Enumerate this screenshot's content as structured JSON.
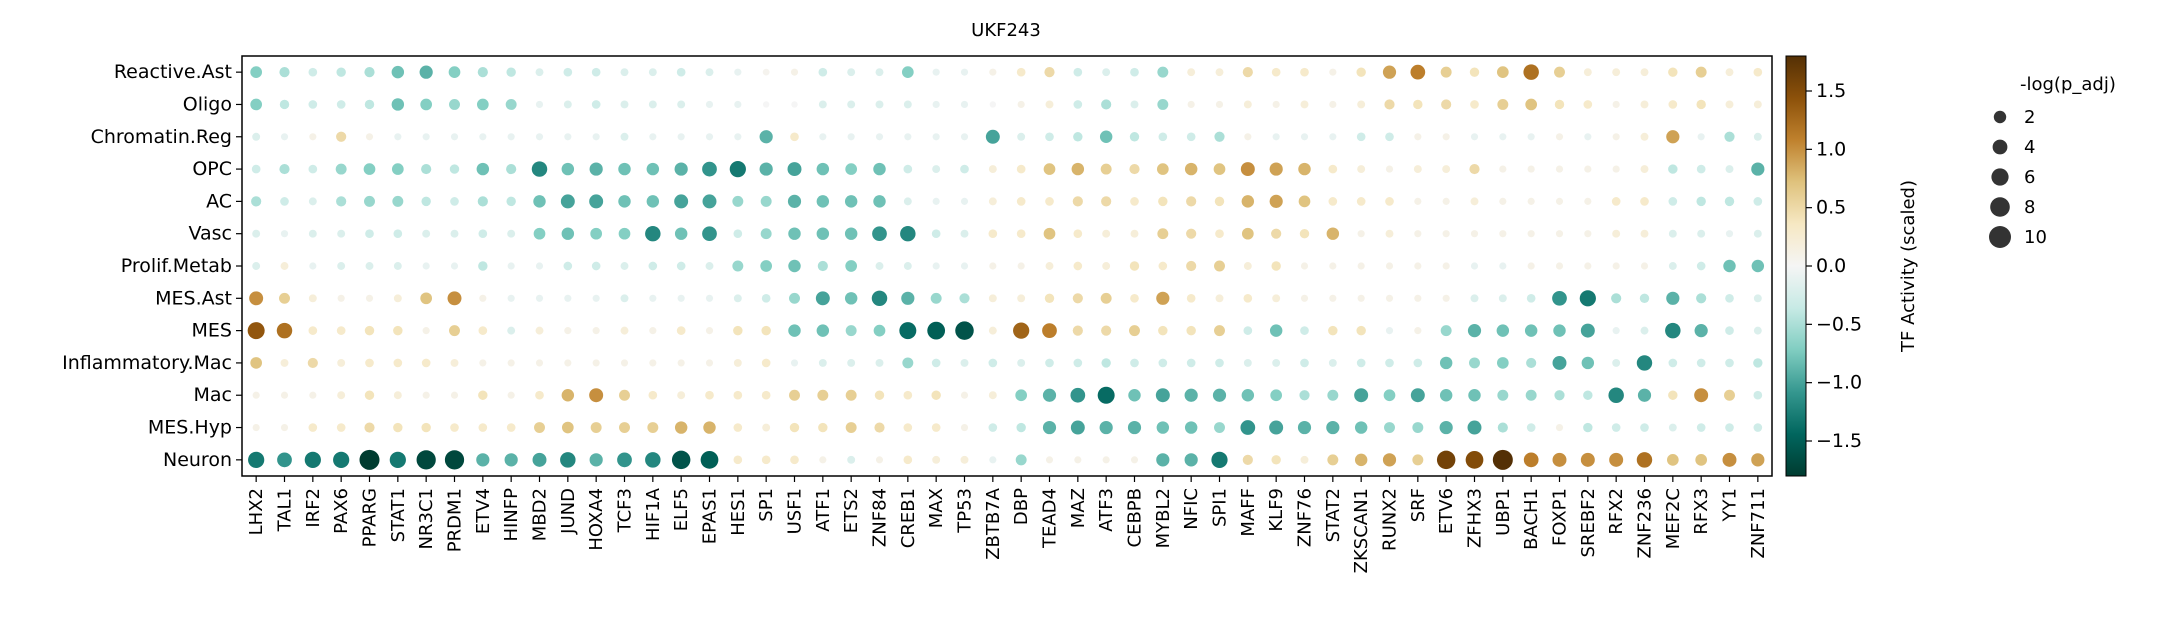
{
  "chart_data": {
    "type": "dotplot",
    "title": "UKF243",
    "rows": [
      "Reactive.Ast",
      "Oligo",
      "Chromatin.Reg",
      "OPC",
      "AC",
      "Vasc",
      "Prolif.Metab",
      "MES.Ast",
      "MES",
      "Inflammatory.Mac",
      "Mac",
      "MES.Hyp",
      "Neuron"
    ],
    "columns": [
      "LHX2",
      "TAL1",
      "IRF2",
      "PAX6",
      "PPARG",
      "STAT1",
      "NR3C1",
      "PRDM1",
      "ETV4",
      "HINFP",
      "MBD2",
      "JUND",
      "HOXA4",
      "TCF3",
      "HIF1A",
      "ELF5",
      "EPAS1",
      "HES1",
      "SP1",
      "USF1",
      "ATF1",
      "ETS2",
      "ZNF84",
      "CREB1",
      "MAX",
      "TP53",
      "ZBTB7A",
      "DBP",
      "TEAD4",
      "MAZ",
      "ATF3",
      "CEBPB",
      "MYBL2",
      "NFIC",
      "SPI1",
      "MAFF",
      "KLF9",
      "ZNF76",
      "STAT2",
      "ZKSCAN1",
      "RUNX2",
      "SRF",
      "ETV6",
      "ZFHX3",
      "UBP1",
      "BACH1",
      "FOXP1",
      "SREBF2",
      "RFX2",
      "ZNF236",
      "MEF2C",
      "RFX3",
      "YY1",
      "ZNF711"
    ],
    "activity": [
      [
        -0.7,
        -0.5,
        -0.3,
        -0.4,
        -0.5,
        -0.8,
        -0.9,
        -0.7,
        -0.5,
        -0.4,
        -0.2,
        -0.3,
        -0.3,
        -0.2,
        -0.2,
        -0.3,
        -0.2,
        -0.1,
        0.05,
        0.1,
        -0.3,
        -0.2,
        -0.2,
        -0.7,
        -0.1,
        -0.1,
        0.1,
        0.3,
        0.5,
        -0.3,
        -0.2,
        -0.3,
        -0.6,
        0.2,
        0.2,
        0.5,
        0.3,
        0.3,
        0.1,
        0.4,
        0.9,
        1.1,
        0.6,
        0.4,
        0.7,
        1.2,
        0.6,
        0.2,
        0.2,
        0.2,
        0.4,
        0.6,
        0.2,
        0.3
      ],
      [
        -0.7,
        -0.4,
        -0.3,
        -0.3,
        -0.4,
        -0.8,
        -0.7,
        -0.6,
        -0.7,
        -0.6,
        -0.1,
        -0.2,
        -0.3,
        -0.2,
        -0.2,
        -0.2,
        -0.1,
        -0.1,
        0.0,
        0.0,
        -0.2,
        -0.2,
        -0.2,
        -0.2,
        -0.1,
        -0.1,
        0.0,
        0.1,
        0.2,
        -0.3,
        -0.5,
        -0.2,
        -0.6,
        0.1,
        0.1,
        0.2,
        0.1,
        0.2,
        0.1,
        0.2,
        0.5,
        0.4,
        0.5,
        0.3,
        0.6,
        0.7,
        0.4,
        0.3,
        0.1,
        0.2,
        0.3,
        0.4,
        0.2,
        0.2
      ],
      [
        -0.2,
        -0.1,
        0.1,
        0.5,
        0.1,
        -0.1,
        -0.1,
        -0.1,
        -0.1,
        -0.1,
        -0.1,
        -0.1,
        -0.1,
        -0.2,
        -0.1,
        -0.1,
        -0.1,
        -0.1,
        -0.9,
        0.3,
        -0.1,
        -0.1,
        -0.1,
        -0.1,
        -0.1,
        -0.1,
        -1.0,
        -0.2,
        -0.3,
        -0.4,
        -0.8,
        -0.4,
        -0.3,
        -0.3,
        -0.5,
        0.1,
        -0.1,
        -0.1,
        -0.1,
        -0.3,
        -0.3,
        0.1,
        0.1,
        -0.1,
        -0.1,
        -0.1,
        0.1,
        -0.1,
        0.1,
        0.2,
        0.9,
        -0.1,
        -0.5,
        -0.2
      ],
      [
        -0.3,
        -0.5,
        -0.3,
        -0.6,
        -0.7,
        -0.7,
        -0.5,
        -0.4,
        -0.8,
        -0.5,
        -1.2,
        -0.8,
        -0.9,
        -0.8,
        -0.8,
        -0.9,
        -1.1,
        -1.3,
        -0.9,
        -1.0,
        -0.8,
        -0.7,
        -0.8,
        -0.3,
        -0.2,
        -0.3,
        0.2,
        0.3,
        0.7,
        0.8,
        0.6,
        0.5,
        0.7,
        0.8,
        0.7,
        1.0,
        0.9,
        0.8,
        0.3,
        0.2,
        0.1,
        0.2,
        0.2,
        0.5,
        0.1,
        0.1,
        0.1,
        0.1,
        0.1,
        0.2,
        -0.4,
        -0.3,
        -0.2,
        -0.9
      ],
      [
        -0.5,
        -0.3,
        -0.2,
        -0.5,
        -0.6,
        -0.6,
        -0.4,
        -0.3,
        -0.5,
        -0.4,
        -0.8,
        -1.0,
        -1.0,
        -0.8,
        -0.8,
        -1.0,
        -1.0,
        -0.6,
        -0.6,
        -0.9,
        -0.8,
        -0.8,
        -0.8,
        -0.2,
        -0.1,
        -0.1,
        0.2,
        0.3,
        0.3,
        0.5,
        0.5,
        0.3,
        0.4,
        0.5,
        0.4,
        0.8,
        0.9,
        0.7,
        0.3,
        0.3,
        0.3,
        0.1,
        0.1,
        0.2,
        0.1,
        0.1,
        0.1,
        0.1,
        0.3,
        0.3,
        -0.3,
        -0.4,
        -0.4,
        -0.3
      ],
      [
        -0.2,
        -0.1,
        -0.2,
        -0.2,
        -0.3,
        -0.3,
        -0.2,
        -0.2,
        -0.3,
        -0.2,
        -0.7,
        -0.8,
        -0.7,
        -0.7,
        -1.2,
        -0.8,
        -1.1,
        -0.3,
        -0.6,
        -0.8,
        -0.8,
        -0.8,
        -1.1,
        -1.2,
        -0.3,
        -0.2,
        0.3,
        0.3,
        0.7,
        0.3,
        0.2,
        0.2,
        0.6,
        0.5,
        0.3,
        0.7,
        0.5,
        0.4,
        0.8,
        0.1,
        0.2,
        0.1,
        0.1,
        0.1,
        0.1,
        0.1,
        0.1,
        0.1,
        0.2,
        0.2,
        -0.2,
        -0.2,
        -0.1,
        -0.2
      ],
      [
        -0.2,
        0.2,
        -0.1,
        -0.2,
        -0.2,
        -0.2,
        -0.1,
        -0.1,
        -0.4,
        -0.1,
        -0.1,
        -0.3,
        -0.3,
        -0.2,
        -0.3,
        -0.3,
        -0.2,
        -0.6,
        -0.7,
        -0.8,
        -0.5,
        -0.7,
        -0.2,
        -0.2,
        -0.1,
        -0.1,
        0.1,
        0.1,
        0.2,
        0.3,
        0.2,
        0.4,
        0.3,
        0.5,
        0.6,
        0.2,
        0.4,
        0.1,
        0.1,
        0.1,
        0.1,
        0.1,
        0.1,
        -0.1,
        -0.1,
        0.1,
        0.1,
        0.1,
        0.1,
        0.1,
        -0.2,
        -0.3,
        -0.8,
        -0.8
      ],
      [
        1.0,
        0.6,
        0.2,
        0.1,
        0.1,
        0.2,
        0.7,
        1.0,
        0.1,
        -0.1,
        -0.1,
        -0.1,
        -0.1,
        -0.2,
        -0.1,
        -0.1,
        -0.1,
        -0.2,
        -0.3,
        -0.6,
        -1.0,
        -0.8,
        -1.2,
        -0.9,
        -0.6,
        -0.5,
        0.2,
        0.2,
        0.4,
        0.5,
        0.6,
        0.3,
        0.9,
        0.3,
        0.2,
        0.3,
        0.2,
        0.1,
        0.1,
        0.1,
        0.1,
        0.1,
        0.1,
        -0.2,
        -0.2,
        -0.3,
        -1.1,
        -1.3,
        -0.5,
        -0.4,
        -0.9,
        -0.5,
        -0.3,
        -0.2
      ],
      [
        1.4,
        1.2,
        0.3,
        0.3,
        0.4,
        0.4,
        0.1,
        0.6,
        0.3,
        -0.2,
        0.2,
        0.1,
        0.1,
        0.2,
        0.1,
        0.3,
        0.1,
        0.4,
        0.4,
        -0.8,
        -0.8,
        -0.6,
        -0.7,
        -1.4,
        -1.5,
        -1.6,
        0.2,
        1.3,
        1.1,
        0.5,
        0.5,
        0.6,
        0.4,
        0.4,
        0.6,
        -0.3,
        -0.8,
        -0.3,
        0.4,
        0.4,
        -0.1,
        0.1,
        -0.6,
        -0.9,
        -0.8,
        -0.8,
        -0.8,
        -1.0,
        -0.1,
        -0.2,
        -1.2,
        -0.9,
        -0.3,
        -0.2
      ],
      [
        0.7,
        0.2,
        0.5,
        0.2,
        0.3,
        0.3,
        0.3,
        0.2,
        0.1,
        0.1,
        0.1,
        0.1,
        0.1,
        0.1,
        0.1,
        0.1,
        0.1,
        0.2,
        0.3,
        -0.1,
        -0.2,
        -0.2,
        -0.2,
        -0.6,
        -0.3,
        -0.2,
        -0.3,
        -0.2,
        -0.3,
        -0.3,
        -0.4,
        -0.3,
        -0.3,
        -0.3,
        -0.3,
        -0.2,
        -0.2,
        -0.3,
        -0.2,
        -0.3,
        -0.3,
        -0.3,
        -0.8,
        -0.6,
        -0.7,
        -0.5,
        -1.0,
        -0.8,
        -0.2,
        -1.2,
        -0.3,
        -0.3,
        -0.3,
        -0.4
      ],
      [
        0.1,
        0.1,
        0.1,
        0.2,
        0.4,
        0.2,
        0.1,
        0.1,
        0.4,
        0.1,
        0.3,
        0.8,
        1.0,
        0.6,
        0.3,
        0.2,
        0.3,
        0.3,
        0.3,
        0.6,
        0.6,
        0.6,
        0.4,
        0.3,
        0.4,
        0.1,
        0.2,
        -0.7,
        -0.9,
        -1.1,
        -1.4,
        -0.8,
        -1.0,
        -0.9,
        -0.9,
        -0.8,
        -0.7,
        -0.5,
        -0.6,
        -1.0,
        -0.7,
        -1.0,
        -0.8,
        -0.8,
        -0.6,
        -0.6,
        -0.5,
        -0.4,
        -1.2,
        -0.9,
        0.4,
        1.0,
        0.6,
        -0.3
      ],
      [
        0.1,
        0.1,
        0.3,
        0.3,
        0.5,
        0.4,
        0.4,
        0.3,
        0.3,
        0.3,
        0.6,
        0.7,
        0.6,
        0.6,
        0.6,
        0.8,
        0.8,
        0.3,
        0.2,
        0.4,
        0.4,
        0.6,
        0.5,
        0.3,
        0.3,
        0.1,
        -0.3,
        -0.4,
        -0.9,
        -1.0,
        -0.9,
        -0.9,
        -0.8,
        -0.8,
        -0.6,
        -1.1,
        -1.0,
        -0.9,
        -0.9,
        -0.8,
        -0.6,
        -0.6,
        -0.9,
        -1.0,
        -0.5,
        -0.3,
        0.1,
        -0.4,
        -0.3,
        -0.3,
        -0.2,
        -0.3,
        -0.3,
        -0.3
      ],
      [
        -1.3,
        -1.1,
        -1.3,
        -1.3,
        -1.8,
        -1.3,
        -1.7,
        -1.7,
        -0.9,
        -0.9,
        -1.0,
        -1.2,
        -0.9,
        -1.1,
        -1.2,
        -1.6,
        -1.5,
        0.3,
        0.3,
        0.3,
        0.1,
        -0.2,
        0.1,
        0.3,
        0.2,
        0.2,
        -0.1,
        -0.6,
        0.1,
        0.1,
        0.1,
        0.1,
        -0.9,
        -0.9,
        -1.3,
        0.5,
        0.4,
        0.2,
        0.6,
        0.8,
        0.9,
        0.6,
        1.6,
        1.5,
        1.8,
        1.1,
        1.0,
        1.0,
        1.0,
        1.2,
        0.7,
        0.7,
        1.0,
        0.9
      ]
    ],
    "colorbar": {
      "label": "TF Activity (scaled)",
      "range": [
        -1.8,
        1.8
      ],
      "ticks": [
        1.5,
        1.0,
        0.5,
        0.0,
        -0.5,
        -1.0,
        -1.5
      ],
      "tick_labels": [
        "1.5",
        "1.0",
        "0.5",
        "0.0",
        "−0.5",
        "−1.0",
        "−1.5"
      ]
    },
    "size_legend": {
      "title": "-log(p_adj)",
      "values": [
        2,
        4,
        6,
        8,
        10
      ]
    },
    "colormap": [
      "#003c30",
      "#01665e",
      "#35978f",
      "#80cdc1",
      "#c7eae5",
      "#f5f5f5",
      "#f6e8c3",
      "#dfc27d",
      "#bf812d",
      "#8c510a",
      "#543005"
    ]
  }
}
